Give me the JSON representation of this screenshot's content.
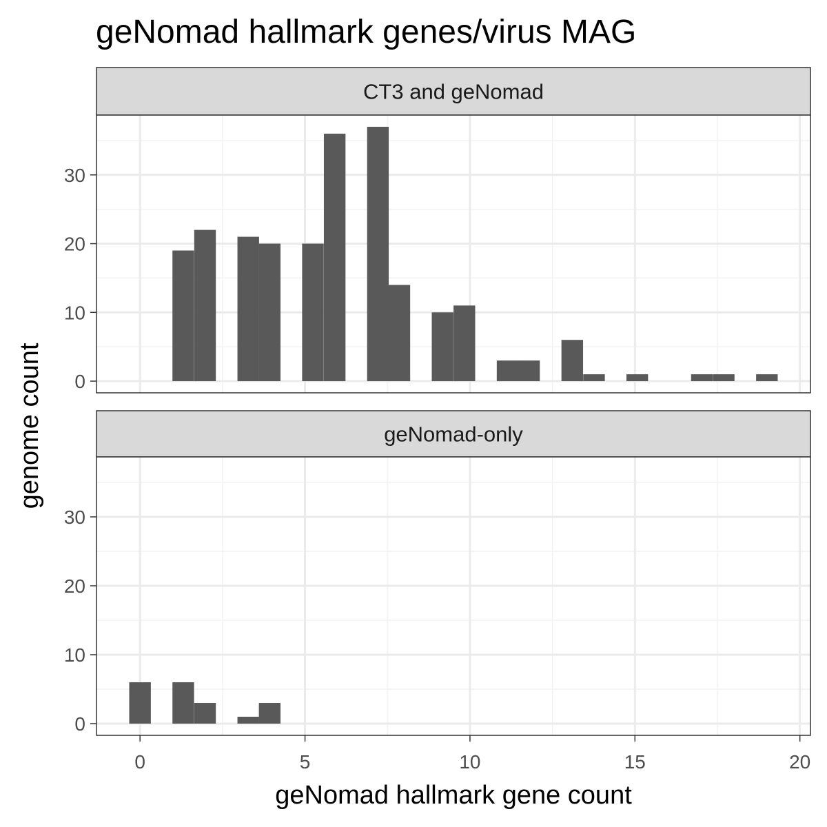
{
  "chart_data": {
    "type": "bar",
    "title": "geNomad hallmark genes/virus MAG",
    "xlabel": "geNomad hallmark gene count",
    "ylabel": "genome count",
    "xlim": [
      -1.32,
      20.32
    ],
    "ylim": [
      -1.7,
      38.7
    ],
    "x_ticks": [
      0,
      5,
      10,
      15,
      20
    ],
    "y_ticks": [
      0,
      10,
      20,
      30
    ],
    "bin_width": 0.6552,
    "grid": true,
    "bar_color": "#595959",
    "panels": [
      {
        "name": "CT3 and geNomad",
        "bins": [
          {
            "x": 1.31,
            "count": 19
          },
          {
            "x": 1.97,
            "count": 22
          },
          {
            "x": 3.28,
            "count": 21
          },
          {
            "x": 3.93,
            "count": 20
          },
          {
            "x": 5.24,
            "count": 20
          },
          {
            "x": 5.9,
            "count": 36
          },
          {
            "x": 7.21,
            "count": 37
          },
          {
            "x": 7.86,
            "count": 14
          },
          {
            "x": 9.17,
            "count": 10
          },
          {
            "x": 9.83,
            "count": 11
          },
          {
            "x": 11.14,
            "count": 3
          },
          {
            "x": 11.79,
            "count": 3
          },
          {
            "x": 13.1,
            "count": 6
          },
          {
            "x": 13.76,
            "count": 1
          },
          {
            "x": 15.07,
            "count": 1
          },
          {
            "x": 17.03,
            "count": 1
          },
          {
            "x": 17.69,
            "count": 1
          },
          {
            "x": 19.0,
            "count": 1
          }
        ]
      },
      {
        "name": "geNomad-only",
        "bins": [
          {
            "x": 0.0,
            "count": 6
          },
          {
            "x": 1.31,
            "count": 6
          },
          {
            "x": 1.97,
            "count": 3
          },
          {
            "x": 3.28,
            "count": 1
          },
          {
            "x": 3.93,
            "count": 3
          }
        ]
      }
    ]
  }
}
